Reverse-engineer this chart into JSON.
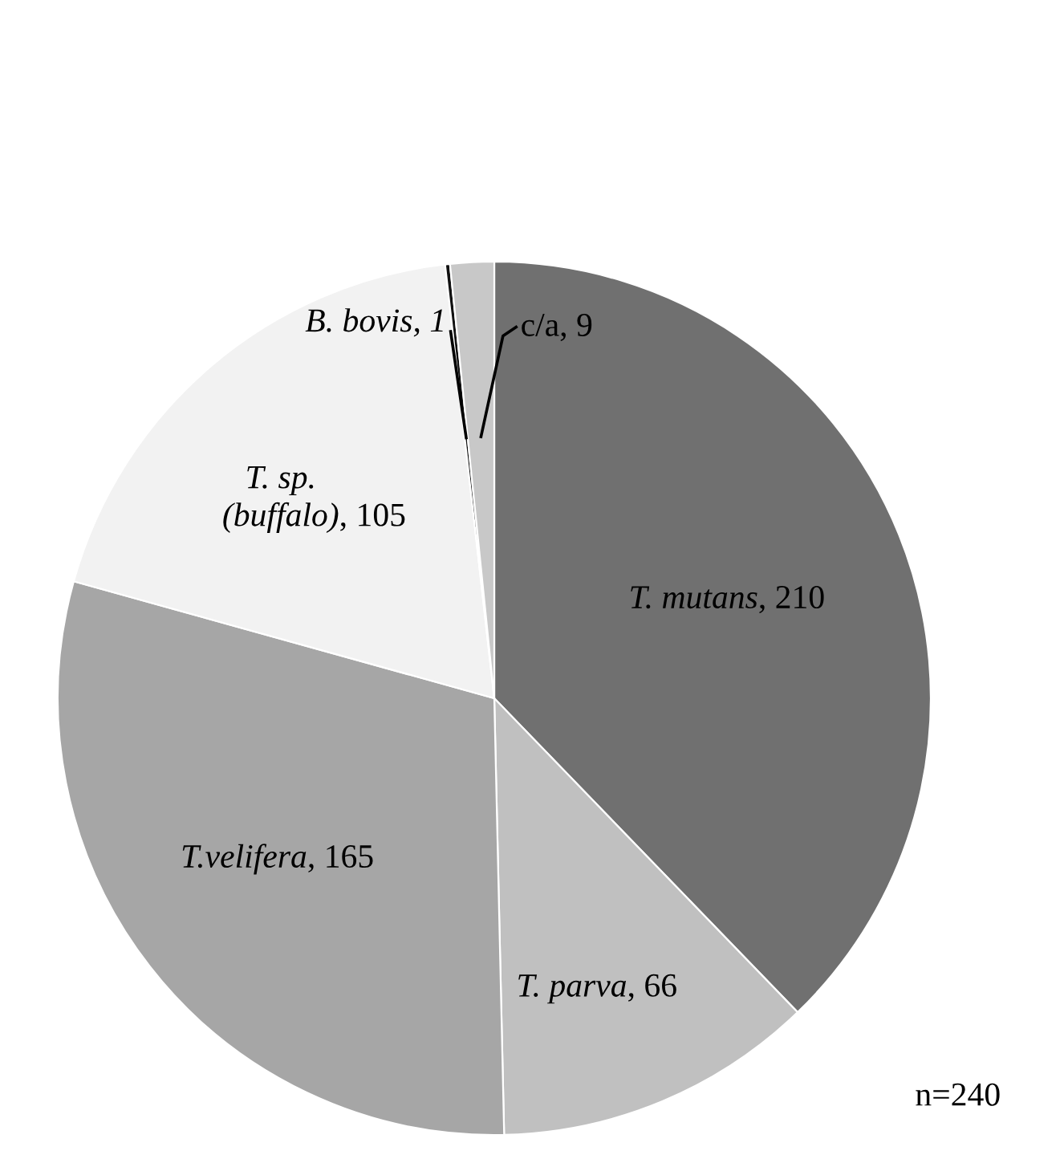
{
  "chart_data": {
    "type": "pie",
    "categories": [
      "T. mutans",
      "T. parva",
      "T.velifera",
      "T. sp. (buffalo)",
      "B. bovis",
      "c/a"
    ],
    "values": [
      210,
      66,
      165,
      105,
      1,
      9
    ],
    "value_labels": [
      ", 210",
      ", 66",
      ", 165",
      ", 105",
      ", 1",
      ", 9"
    ],
    "colors": [
      "#707070",
      "#c0c0c0",
      "#a6a6a6",
      "#f2f2f2",
      "#111111",
      "#c8c8c8"
    ],
    "annotations": [
      "n=240"
    ]
  }
}
